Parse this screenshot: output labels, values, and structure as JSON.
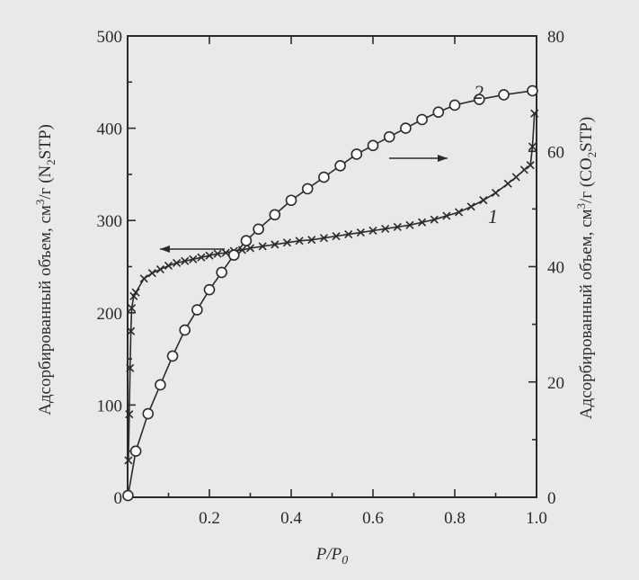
{
  "chart_data": {
    "type": "scatter",
    "title": "",
    "xlabel": "P/P",
    "xlabel_sub": "0",
    "ylabel_left_parts": [
      "Адсорбированный объем, см",
      "3",
      "/г (N",
      "2",
      "STP)"
    ],
    "ylabel_right_parts": [
      "Адсорбированный объем, см",
      "3",
      "/г (CO",
      "2",
      "STP)"
    ],
    "xlim": [
      0,
      1.0
    ],
    "ylim_left": [
      0,
      500
    ],
    "ylim_right": [
      0,
      80
    ],
    "x_ticks": [
      {
        "value": 0,
        "label": "0"
      },
      {
        "value": 0.2,
        "label": "0.2"
      },
      {
        "value": 0.4,
        "label": "0.4"
      },
      {
        "value": 0.6,
        "label": "0.6"
      },
      {
        "value": 0.8,
        "label": "0.8"
      },
      {
        "value": 1.0,
        "label": "1.0"
      }
    ],
    "y_left_ticks": [
      {
        "value": 0,
        "label": "0"
      },
      {
        "value": 100,
        "label": "100"
      },
      {
        "value": 200,
        "label": "200"
      },
      {
        "value": 300,
        "label": "300"
      },
      {
        "value": 400,
        "label": "400"
      },
      {
        "value": 500,
        "label": "500"
      }
    ],
    "y_right_ticks": [
      {
        "value": 0,
        "label": "0"
      },
      {
        "value": 20,
        "label": "20"
      },
      {
        "value": 40,
        "label": "40"
      },
      {
        "value": 60,
        "label": "60"
      },
      {
        "value": 80,
        "label": "80"
      }
    ],
    "grid": false,
    "legend": "none",
    "series": [
      {
        "label": "1",
        "marker": "x",
        "axis": "left",
        "x": [
          0.002,
          0.004,
          0.006,
          0.008,
          0.01,
          0.015,
          0.02,
          0.04,
          0.06,
          0.08,
          0.1,
          0.12,
          0.14,
          0.16,
          0.18,
          0.2,
          0.22,
          0.24,
          0.26,
          0.28,
          0.3,
          0.33,
          0.36,
          0.39,
          0.42,
          0.45,
          0.48,
          0.51,
          0.54,
          0.57,
          0.6,
          0.63,
          0.66,
          0.69,
          0.72,
          0.75,
          0.78,
          0.81,
          0.84,
          0.87,
          0.9,
          0.93,
          0.95,
          0.97,
          0.985,
          0.99,
          0.995
        ],
        "y": [
          40,
          90,
          140,
          180,
          205,
          218,
          222,
          237,
          243,
          247,
          251,
          254,
          256,
          258,
          260,
          262,
          264,
          265,
          267,
          268,
          270,
          272,
          274,
          276,
          278,
          279,
          281,
          283,
          285,
          287,
          289,
          291,
          293,
          295,
          298,
          301,
          305,
          309,
          315,
          322,
          330,
          340,
          347,
          355,
          360,
          380,
          416
        ]
      },
      {
        "label": "2",
        "marker": "o",
        "axis": "right",
        "x": [
          0.001,
          0.02,
          0.05,
          0.08,
          0.11,
          0.14,
          0.17,
          0.2,
          0.23,
          0.26,
          0.29,
          0.32,
          0.36,
          0.4,
          0.44,
          0.48,
          0.52,
          0.56,
          0.6,
          0.64,
          0.68,
          0.72,
          0.76,
          0.8,
          0.86,
          0.92,
          0.99
        ],
        "y": [
          0.3,
          8,
          14.5,
          19.5,
          24.5,
          29,
          32.5,
          36,
          39,
          42,
          44.5,
          46.5,
          49,
          51.5,
          53.5,
          55.5,
          57.5,
          59.5,
          61,
          62.5,
          64,
          65.5,
          66.8,
          68,
          69,
          69.8,
          70.5
        ]
      }
    ],
    "annotations": [
      {
        "text": "2",
        "near": "series-2-end"
      },
      {
        "text": "1",
        "near": "series-1-end"
      }
    ]
  }
}
